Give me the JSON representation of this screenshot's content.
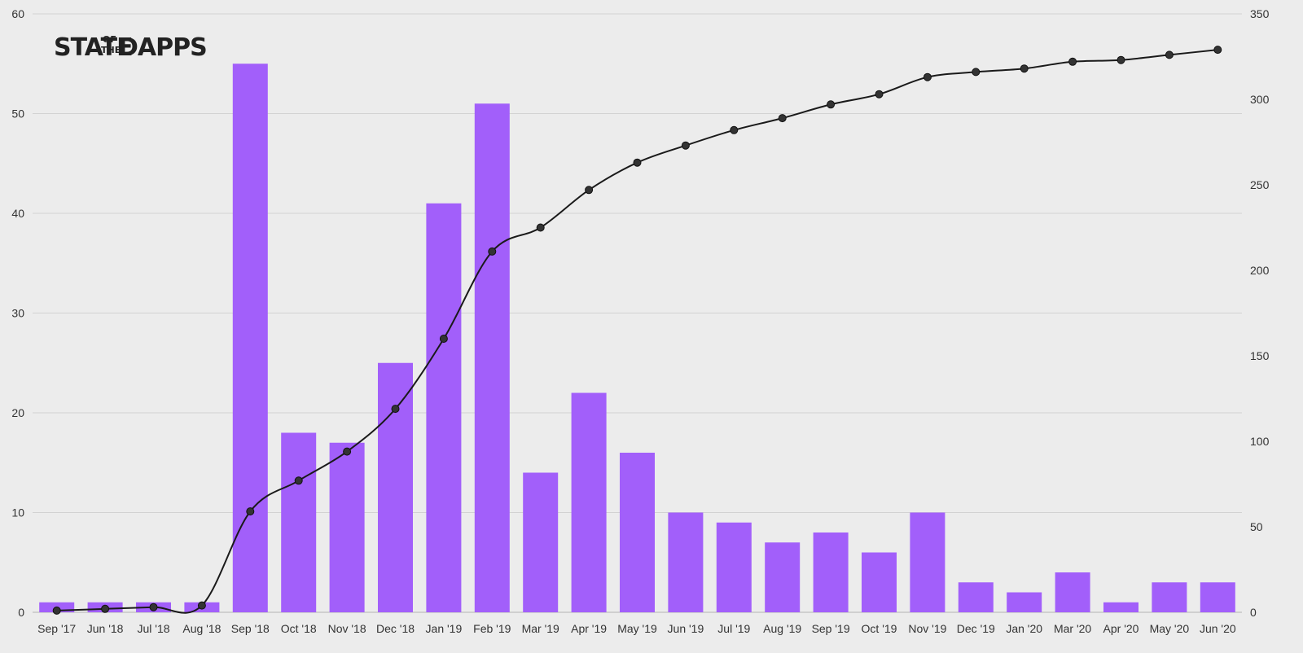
{
  "logo": {
    "text_main": "STATE",
    "text_of": "OF",
    "text_the": "THE",
    "text_dapps": "DAPPS"
  },
  "colors": {
    "background": "#ececec",
    "bar": "#a25ffa",
    "line": "#1a1a1a",
    "marker": "#333333",
    "grid": "#d2d2d2"
  },
  "chart_data": {
    "type": "bar",
    "grid": true,
    "categories": [
      "Sep '17",
      "Jun '18",
      "Jul '18",
      "Aug '18",
      "Sep '18",
      "Oct '18",
      "Nov '18",
      "Dec '18",
      "Jan '19",
      "Feb '19",
      "Mar '19",
      "Apr '19",
      "May '19",
      "Jun '19",
      "Jul '19",
      "Aug '19",
      "Sep '19",
      "Oct '19",
      "Nov '19",
      "Dec '19",
      "Jan '20",
      "Mar '20",
      "Apr '20",
      "May '20",
      "Jun '20"
    ],
    "series": [
      {
        "type": "bar",
        "axis": "left",
        "values": [
          1,
          1,
          1,
          1,
          55,
          18,
          17,
          25,
          41,
          51,
          14,
          22,
          16,
          10,
          9,
          7,
          8,
          6,
          10,
          3,
          2,
          4,
          1,
          3,
          3
        ]
      },
      {
        "type": "line",
        "axis": "right",
        "values": [
          1,
          2,
          3,
          4,
          59,
          77,
          94,
          119,
          160,
          211,
          225,
          247,
          263,
          273,
          282,
          289,
          297,
          303,
          313,
          316,
          318,
          322,
          323,
          326,
          329
        ]
      }
    ],
    "y_left": {
      "min": 0,
      "max": 60,
      "ticks": [
        0,
        10,
        20,
        30,
        40,
        50,
        60
      ]
    },
    "y_right": {
      "min": 0,
      "max": 350,
      "ticks": [
        0,
        50,
        100,
        150,
        200,
        250,
        300,
        350
      ]
    }
  }
}
